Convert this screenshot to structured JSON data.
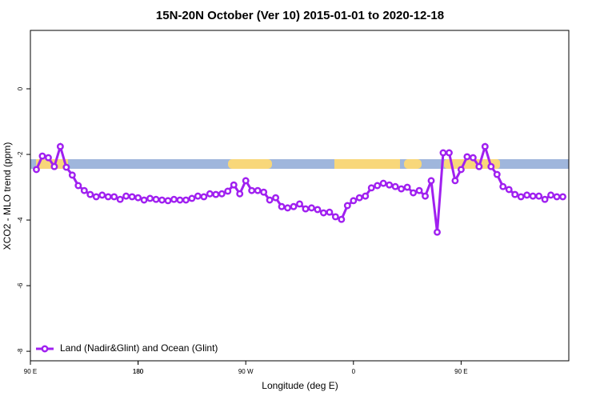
{
  "chart_data": {
    "type": "line",
    "title": "15N-20N October (Ver 10)   2015-01-01 to 2020-12-18",
    "x_label": "Longitude (deg E)",
    "y_label": "XCO2 - MLO trend (ppm)",
    "x": [
      95,
      100,
      105,
      110,
      115,
      120,
      125,
      130,
      135,
      140,
      145,
      150,
      155,
      160,
      165,
      170,
      175,
      180,
      185,
      190,
      195,
      200,
      205,
      210,
      215,
      220,
      225,
      230,
      235,
      240,
      245,
      250,
      255,
      260,
      265,
      270,
      275,
      280,
      285,
      290,
      295,
      300,
      305,
      310,
      315,
      320,
      325,
      330,
      335,
      340,
      345,
      350,
      355,
      360,
      365,
      370,
      375,
      380,
      385,
      390,
      395,
      400,
      405,
      410,
      415,
      420,
      425,
      430,
      435,
      440,
      445,
      450,
      455,
      460,
      465,
      470,
      475,
      480,
      485,
      490,
      495,
      500,
      505,
      510,
      515,
      520,
      525,
      530,
      535
    ],
    "series": [
      {
        "name": "Land (Nadir&Glint) and Ocean (Glint)",
        "color": "#a020f0",
        "values": [
          -2.46,
          -2.05,
          -2.1,
          -2.37,
          -1.76,
          -2.39,
          -2.63,
          -2.95,
          -3.1,
          -3.22,
          -3.29,
          -3.24,
          -3.29,
          -3.29,
          -3.37,
          -3.27,
          -3.29,
          -3.32,
          -3.39,
          -3.34,
          -3.37,
          -3.39,
          -3.41,
          -3.37,
          -3.39,
          -3.39,
          -3.34,
          -3.27,
          -3.29,
          -3.2,
          -3.22,
          -3.2,
          -3.12,
          -2.93,
          -3.2,
          -2.8,
          -3.1,
          -3.1,
          -3.15,
          -3.39,
          -3.32,
          -3.59,
          -3.63,
          -3.59,
          -3.51,
          -3.66,
          -3.63,
          -3.68,
          -3.78,
          -3.76,
          -3.9,
          -3.98,
          -3.56,
          -3.41,
          -3.32,
          -3.27,
          -3.02,
          -2.95,
          -2.88,
          -2.93,
          -2.98,
          -3.05,
          -3.0,
          -3.17,
          -3.1,
          -3.27,
          -2.8,
          -4.37,
          -1.95,
          -1.95,
          -2.8,
          -2.46,
          -2.07,
          -2.1,
          -2.37,
          -1.76,
          -2.37,
          -2.61,
          -2.98,
          -3.07,
          -3.22,
          -3.29,
          -3.24,
          -3.27,
          -3.27,
          -3.37,
          -3.24,
          -3.29,
          -3.29
        ]
      }
    ],
    "xlim": [
      90,
      540
    ],
    "xticks": [
      {
        "value": 90,
        "label": "90 E"
      },
      180,
      {
        "value": 270,
        "label": "90 W"
      },
      {
        "value": 360,
        "label": "0"
      },
      {
        "value": 450,
        "label": "90 E"
      },
      180.0001
    ],
    "ylim": [
      -8.29,
      1.78
    ],
    "yticks": [
      0,
      -2,
      -4,
      -6,
      -8
    ],
    "legend": "bottom-left"
  }
}
